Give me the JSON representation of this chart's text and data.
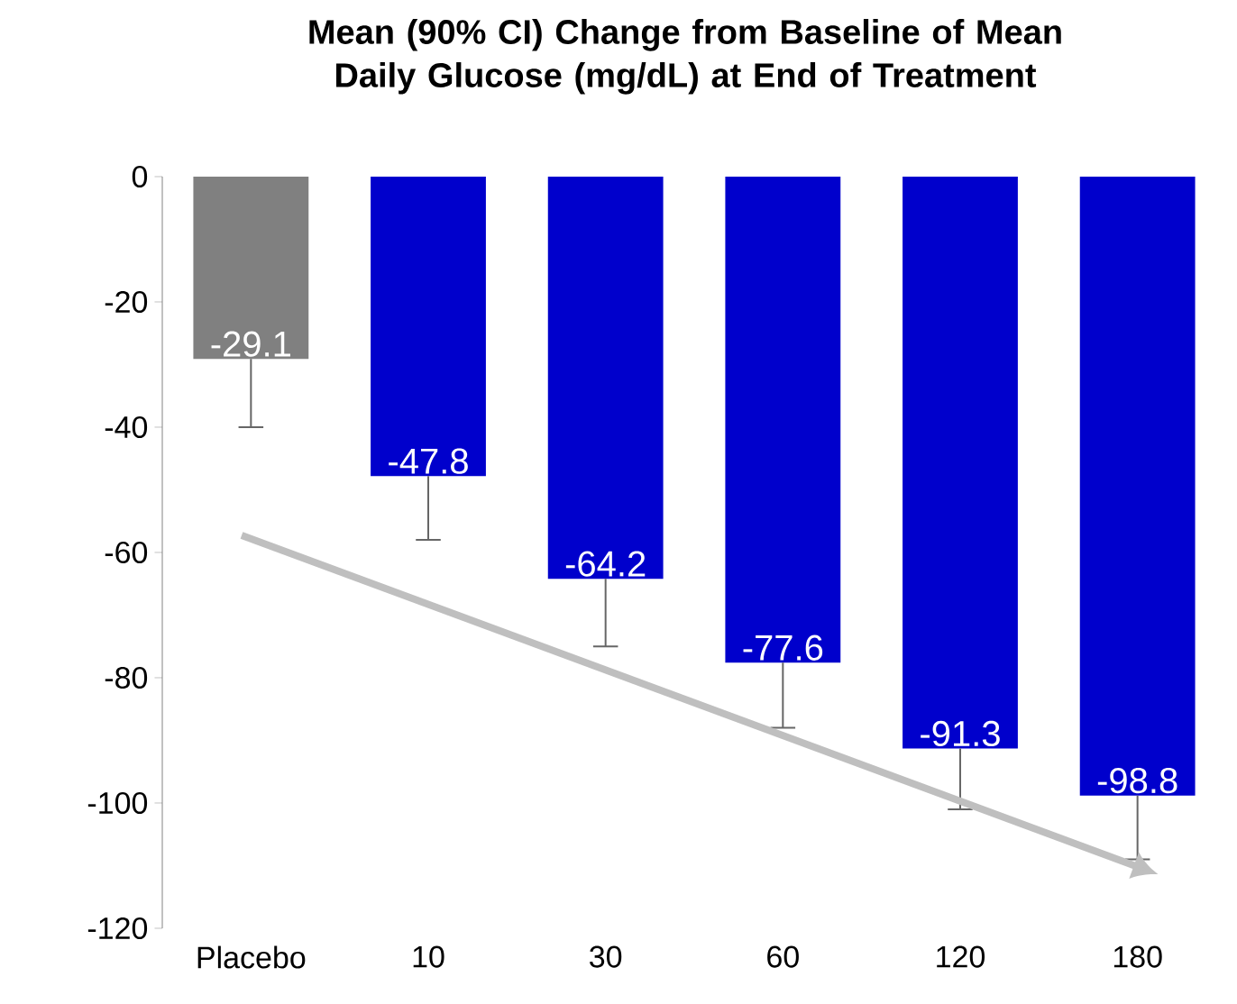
{
  "chart_data": {
    "type": "bar",
    "title": "Mean (90% CI) Change from Baseline of Mean Daily Glucose (mg/dL) at End of Treatment",
    "categories": [
      "Placebo",
      "10",
      "30",
      "60",
      "120",
      "180"
    ],
    "values": [
      -29.1,
      -47.8,
      -64.2,
      -77.6,
      -91.3,
      -98.8
    ],
    "colors": [
      "#808080",
      "#0000cc",
      "#0000cc",
      "#0000cc",
      "#0000cc",
      "#0000cc"
    ],
    "errors": [
      [
        -40,
        -29.1
      ],
      [
        -58,
        -47.8
      ],
      [
        -75,
        -64.2
      ],
      [
        -88,
        -77.6
      ],
      [
        -101,
        -91.3
      ],
      [
        -109,
        -98.8
      ]
    ],
    "data_labels": true,
    "ylim": [
      -120,
      0
    ],
    "yticks": [
      -120,
      -100,
      -80,
      -60,
      -40,
      -20,
      0
    ],
    "grid": false
  }
}
